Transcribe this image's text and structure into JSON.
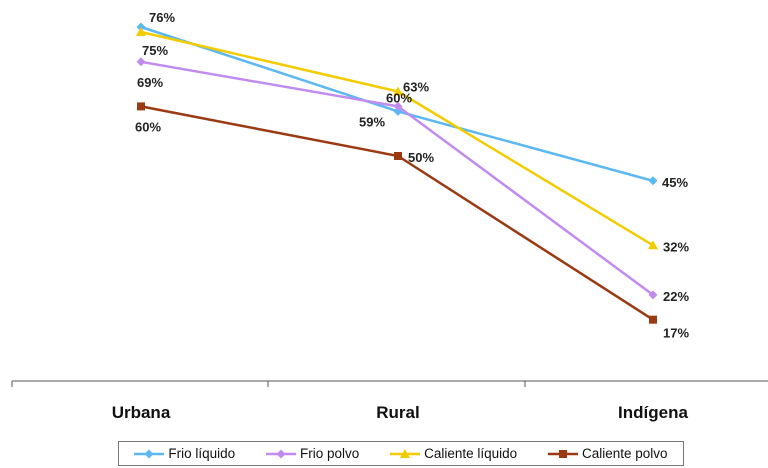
{
  "chart_data": {
    "type": "line",
    "categories": [
      "Urbana",
      "Rural",
      "Indígena"
    ],
    "series": [
      {
        "name": "Frio líquido",
        "values": [
          76,
          59,
          45
        ],
        "color": "#5bb8f0",
        "marker": "diamond",
        "labels": [
          "76%",
          "59%",
          "45%"
        ]
      },
      {
        "name": "Frio polvo",
        "values": [
          69,
          60,
          22
        ],
        "color": "#c08cf0",
        "marker": "diamond",
        "labels": [
          "69%",
          "60%",
          "22%"
        ]
      },
      {
        "name": "Caliente líquido",
        "values": [
          75,
          63,
          32
        ],
        "color": "#f2cc00",
        "marker": "triangle",
        "labels": [
          "75%",
          "63%",
          "32%"
        ]
      },
      {
        "name": "Caliente polvo",
        "values": [
          60,
          50,
          17
        ],
        "color": "#9a3a12",
        "marker": "square",
        "labels": [
          "60%",
          "50%",
          "17%"
        ]
      }
    ],
    "ylim": [
      0,
      100
    ],
    "grid": false,
    "legend_position": "bottom"
  }
}
